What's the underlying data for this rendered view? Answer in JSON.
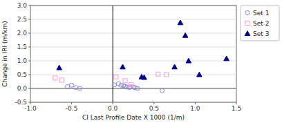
{
  "chart_data": {
    "type": "scatter",
    "xlabel": "CI Last Profile Date X 1000 (1/m)",
    "ylabel": "Change in IRI (m/km)",
    "series": [
      {
        "name": "Set 1",
        "color": "#8888cc",
        "marker": "circle-open",
        "x": [
          -0.55,
          -0.5,
          -0.45,
          -0.4,
          0.02,
          0.07,
          0.1,
          0.13,
          0.15,
          0.17,
          0.2,
          0.22,
          0.25,
          0.27,
          0.3,
          0.6
        ],
        "values": [
          0.07,
          0.12,
          0.03,
          0.0,
          0.13,
          0.17,
          0.12,
          0.1,
          0.08,
          0.05,
          0.03,
          0.06,
          0.05,
          0.03,
          0.0,
          -0.08
        ]
      },
      {
        "name": "Set 2",
        "color": "#ff99dd",
        "marker": "square-open",
        "x": [
          -0.7,
          -0.62,
          0.04,
          0.15,
          0.22,
          0.55,
          0.65
        ],
        "values": [
          0.38,
          0.3,
          0.42,
          0.28,
          0.14,
          0.52,
          0.5
        ]
      },
      {
        "name": "Set 3",
        "color": "#00008b",
        "marker": "triangle",
        "x": [
          -0.65,
          0.12,
          0.35,
          0.38,
          0.75,
          0.82,
          0.88,
          0.92,
          1.05,
          1.38
        ],
        "values": [
          0.75,
          0.78,
          0.42,
          0.4,
          0.78,
          2.38,
          1.92,
          1.0,
          0.5,
          1.08
        ]
      }
    ],
    "xlim": [
      -1.0,
      1.5
    ],
    "ylim": [
      -0.5,
      3.0
    ],
    "xticks": [
      {
        "value": -1.0,
        "label": "-1.0"
      },
      -0.5,
      {
        "value": 0.0,
        "label": "0.0"
      },
      0.5,
      {
        "value": 1.0,
        "label": "1.0"
      },
      1.5
    ],
    "yticks": [
      -0.5,
      {
        "value": 0.0,
        "label": "0.0"
      },
      0.5,
      {
        "value": 1.0,
        "label": "1.0"
      },
      1.5,
      {
        "value": 2.0,
        "label": "2.0"
      },
      2.5,
      {
        "value": 3.0,
        "label": "3.0"
      }
    ],
    "vline": 0.0,
    "hline": 0.0,
    "grid": true,
    "legend": "right"
  }
}
